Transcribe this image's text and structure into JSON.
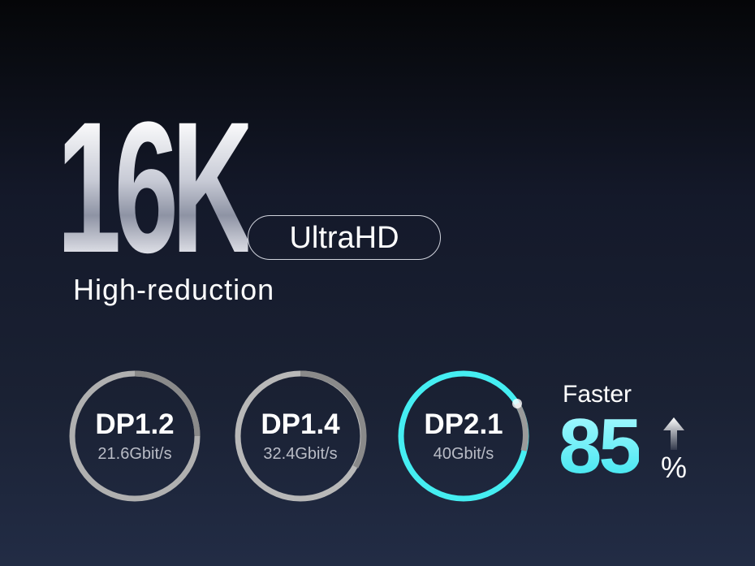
{
  "headline": "16K",
  "badge": "UltraHD",
  "subtitle": "High-reduction",
  "rings": [
    {
      "name": "DP1.2",
      "speed": "21.6Gbit/s",
      "color": "#b8b8b8"
    },
    {
      "name": "DP1.4",
      "speed": "32.4Gbit/s",
      "color": "#b8b8b8"
    },
    {
      "name": "DP2.1",
      "speed": "40Gbit/s",
      "color": "#45eef2"
    }
  ],
  "stat": {
    "label": "Faster",
    "value": "85",
    "unit": "%",
    "icon": "arrow-up-icon",
    "color": "#4ff0f5"
  }
}
